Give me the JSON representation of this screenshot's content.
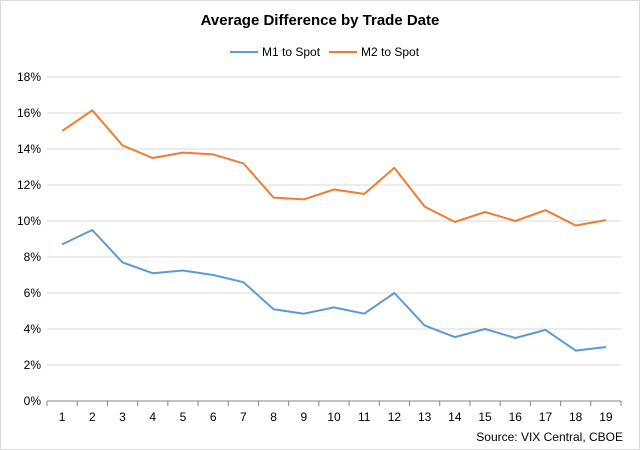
{
  "chart_data": {
    "type": "line",
    "title": "Average Difference by Trade Date",
    "x": [
      "1",
      "2",
      "3",
      "4",
      "5",
      "6",
      "7",
      "8",
      "9",
      "10",
      "11",
      "12",
      "13",
      "14",
      "15",
      "16",
      "17",
      "18",
      "19"
    ],
    "series": [
      {
        "name": "M1 to Spot",
        "color": "#5b9bd5",
        "values": [
          8.7,
          9.5,
          7.7,
          7.1,
          7.25,
          7.0,
          6.6,
          5.1,
          4.85,
          5.2,
          4.85,
          6.0,
          4.2,
          3.55,
          4.0,
          3.5,
          3.95,
          2.8,
          3.0
        ]
      },
      {
        "name": "M2 to Spot",
        "color": "#ed7d31",
        "values": [
          15.0,
          16.15,
          14.2,
          13.5,
          13.8,
          13.7,
          13.2,
          11.3,
          11.2,
          11.75,
          11.5,
          12.95,
          10.8,
          9.95,
          10.5,
          10.0,
          10.6,
          9.75,
          10.05
        ]
      }
    ],
    "ylim": [
      0,
      18
    ],
    "yticks": [
      "0%",
      "2%",
      "4%",
      "6%",
      "8%",
      "10%",
      "12%",
      "14%",
      "16%",
      "18%"
    ],
    "grid": true,
    "legend_position": "top-center",
    "source": "Source: VIX Central, CBOE"
  }
}
